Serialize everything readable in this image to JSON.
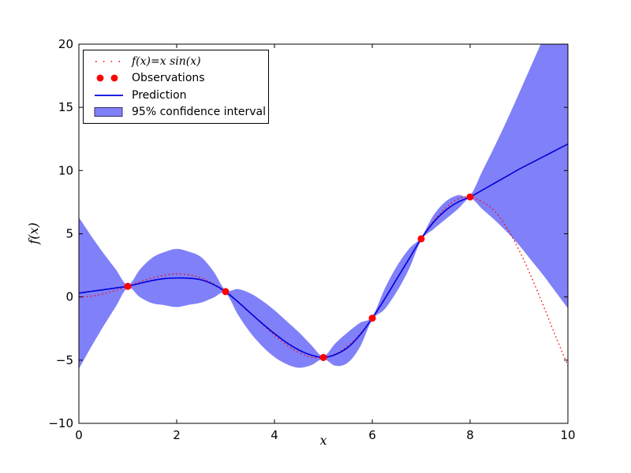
{
  "figure": {
    "background": "#ffffff",
    "frame_color": "#000000"
  },
  "chart_data": {
    "type": "line",
    "title": "",
    "xlabel": "x",
    "ylabel": "f(x)",
    "xlim": [
      0,
      10
    ],
    "ylim": [
      -10,
      20
    ],
    "xticks": [
      0,
      2,
      4,
      6,
      8,
      10
    ],
    "yticks": [
      -10,
      -5,
      0,
      5,
      10,
      15,
      20
    ],
    "grid": false,
    "legend": {
      "position": "upper left",
      "entries": [
        {
          "label": "f(x)=x sin(x)",
          "type": "dotted-line",
          "color": "#ff0000"
        },
        {
          "label": "Observations",
          "type": "markers",
          "color": "#ff0000"
        },
        {
          "label": "Prediction",
          "type": "line",
          "color": "#0000dd"
        },
        {
          "label": "95% confidence interval",
          "type": "patch",
          "color": "#8080f8",
          "edge_color": "#333366"
        }
      ]
    },
    "observations": {
      "x": [
        1,
        3,
        5,
        6,
        7,
        8
      ],
      "y": [
        0.84,
        0.42,
        -4.79,
        -1.68,
        4.6,
        7.91
      ],
      "color": "#ff0000",
      "marker_radius": 4.5
    },
    "samples_x": [
      0,
      0.25,
      0.5,
      0.75,
      1,
      1.25,
      1.5,
      1.75,
      2,
      2.25,
      2.5,
      2.75,
      3,
      3.25,
      3.5,
      3.75,
      4,
      4.25,
      4.5,
      4.75,
      5,
      5.25,
      5.5,
      5.75,
      6,
      6.25,
      6.5,
      6.75,
      7,
      7.25,
      7.5,
      7.75,
      8,
      8.25,
      8.5,
      8.75,
      9,
      9.25,
      9.5,
      9.75,
      10
    ],
    "series": [
      {
        "name": "true_function",
        "style": "dotted",
        "color": "#ff0000",
        "y": [
          0,
          0.06,
          0.24,
          0.51,
          0.84,
          1.19,
          1.5,
          1.72,
          1.82,
          1.75,
          1.5,
          1.05,
          0.42,
          -0.35,
          -1.23,
          -2.15,
          -3.03,
          -3.8,
          -4.4,
          -4.76,
          -4.79,
          -4.5,
          -3.88,
          -2.94,
          -1.68,
          -0.2,
          1.4,
          3.02,
          4.6,
          5.99,
          7.03,
          7.75,
          7.91,
          7.51,
          6.79,
          5.47,
          3.71,
          1.61,
          -0.71,
          -3.12,
          -5.44
        ]
      },
      {
        "name": "prediction",
        "style": "solid",
        "color": "#0000dd",
        "y": [
          0.3,
          0.44,
          0.57,
          0.71,
          0.84,
          1.08,
          1.3,
          1.45,
          1.5,
          1.48,
          1.35,
          0.99,
          0.42,
          -0.38,
          -1.25,
          -2.1,
          -2.9,
          -3.62,
          -4.2,
          -4.6,
          -4.79,
          -4.55,
          -4,
          -3,
          -1.68,
          -0.18,
          1.42,
          3,
          4.6,
          5.9,
          6.85,
          7.5,
          7.91,
          8.45,
          9,
          9.55,
          10.1,
          10.6,
          11.1,
          11.6,
          12.1
        ]
      }
    ],
    "confidence_band": {
      "name": "95% confidence interval",
      "color": "#8080f8",
      "upper": [
        6.3,
        4.84,
        3.47,
        2.21,
        0.96,
        2.18,
        3.1,
        3.55,
        3.8,
        3.58,
        3.15,
        2.04,
        0.54,
        0.62,
        0.3,
        -0.3,
        -1.05,
        -1.92,
        -2.8,
        -3.8,
        -4.67,
        -3.65,
        -2.8,
        -2.05,
        -1.56,
        0.62,
        2.42,
        3.8,
        4.72,
        6.45,
        7.55,
        8.05,
        8.03,
        9.95,
        11.9,
        13.95,
        16.1,
        18.3,
        20.5,
        22.8,
        25.1
      ],
      "lower": [
        -5.7,
        -3.96,
        -2.33,
        -0.79,
        0.72,
        -0.02,
        -0.5,
        -0.65,
        -0.8,
        -0.62,
        -0.45,
        -0.06,
        0.3,
        -1.38,
        -2.8,
        -3.9,
        -4.75,
        -5.32,
        -5.6,
        -5.4,
        -4.91,
        -5.45,
        -5.2,
        -3.95,
        -1.8,
        -0.98,
        0.42,
        2.2,
        4.48,
        5.35,
        6.15,
        6.95,
        7.79,
        6.95,
        6.1,
        5.15,
        4.1,
        2.9,
        1.7,
        0.4,
        -0.9
      ]
    }
  }
}
